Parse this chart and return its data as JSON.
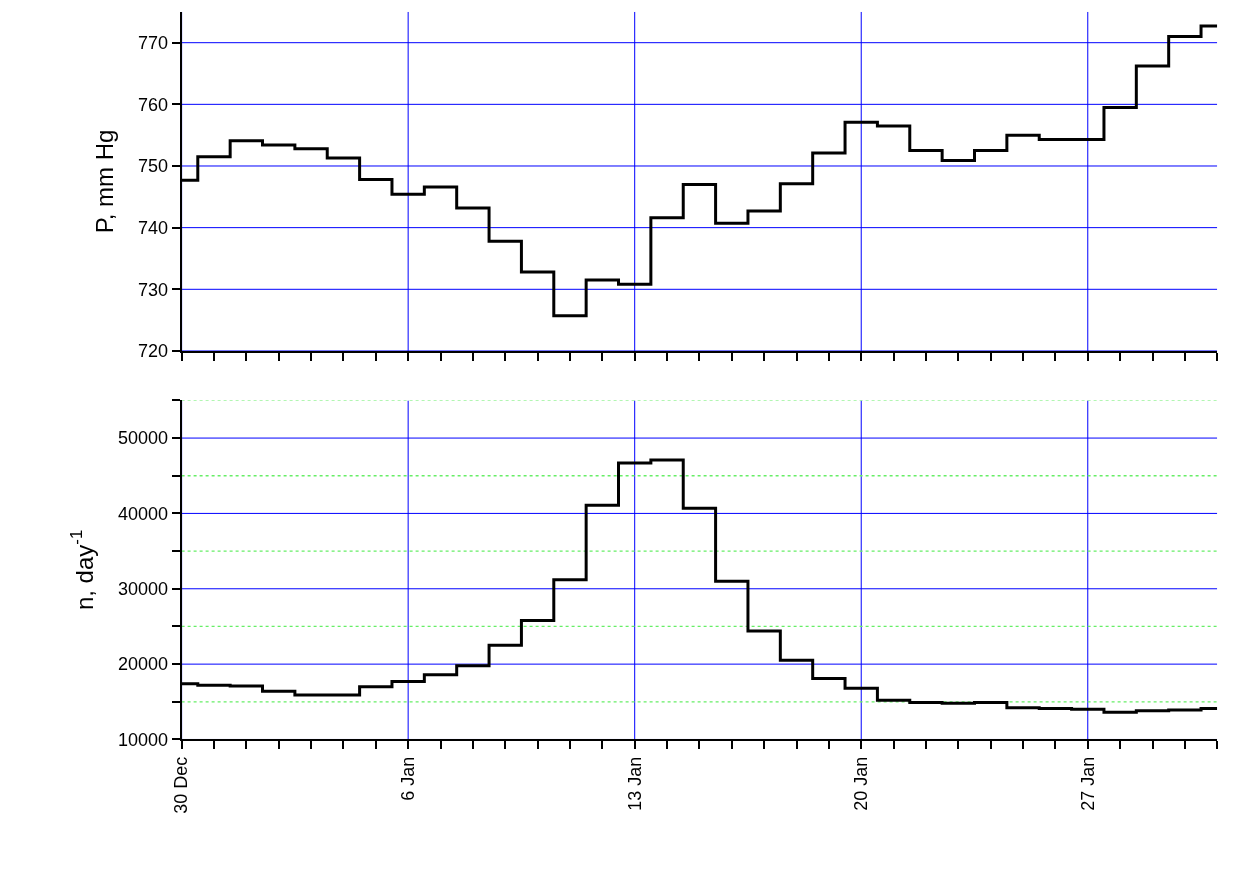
{
  "chart_data": [
    {
      "type": "step",
      "ylabel": "P, mm Hg",
      "tick_labels": "y",
      "grid": true,
      "line_style": "solid",
      "categories": [
        null,
        null,
        null,
        null,
        null,
        null,
        null,
        null,
        null,
        null,
        null,
        null,
        null,
        null,
        null,
        null,
        null,
        null,
        null,
        null,
        null,
        null,
        null,
        null,
        null,
        null,
        null,
        null,
        null,
        null,
        null,
        null,
        null
      ],
      "values": [
        747.7,
        751.5,
        754.1,
        753.4,
        752.8,
        751.3,
        747.8,
        745.4,
        746.6,
        743.2,
        737.8,
        732.8,
        725.7,
        731.5,
        730.8,
        741.6,
        747.0,
        740.7,
        742.7,
        747.1,
        752.1,
        757.1,
        756.5,
        752.5,
        750.9,
        752.5,
        755.0,
        754.3,
        754.3,
        759.5,
        766.2,
        771.0,
        772.7
      ],
      "color": "#000000",
      "ylim": [
        720,
        775
      ],
      "yticks": [
        720,
        730,
        740,
        750,
        760,
        770
      ]
    },
    {
      "type": "step",
      "ylabel": "n, day$^{-1}$",
      "grid": true,
      "line_style": "solid",
      "categories": [
        "30 Dec",
        null,
        null,
        null,
        null,
        null,
        null,
        "6 Jan",
        null,
        null,
        null,
        null,
        null,
        null,
        "13 Jan",
        null,
        null,
        null,
        null,
        null,
        null,
        "20 Jan",
        null,
        null,
        null,
        null,
        null,
        null,
        "27 Jan",
        null,
        null,
        null,
        null
      ],
      "values": [
        17400,
        17200,
        17100,
        16400,
        15900,
        15900,
        17000,
        17700,
        18600,
        19800,
        22500,
        25800,
        31200,
        41100,
        46700,
        47100,
        40700,
        31000,
        24400,
        20500,
        18100,
        16800,
        15200,
        14900,
        14800,
        14900,
        14200,
        14100,
        14000,
        13600,
        13800,
        13900,
        14100
      ],
      "color": "#000000",
      "ylim": [
        10000,
        55000
      ],
      "yticks": [
        10000,
        {
          "value": 15000,
          "label": null
        },
        20000,
        {
          "value": 25000,
          "label": null
        },
        30000,
        {
          "value": 35000,
          "label": null
        },
        40000,
        {
          "value": 45000,
          "label": null
        },
        50000,
        {
          "value": 55000,
          "label": null
        }
      ]
    }
  ]
}
